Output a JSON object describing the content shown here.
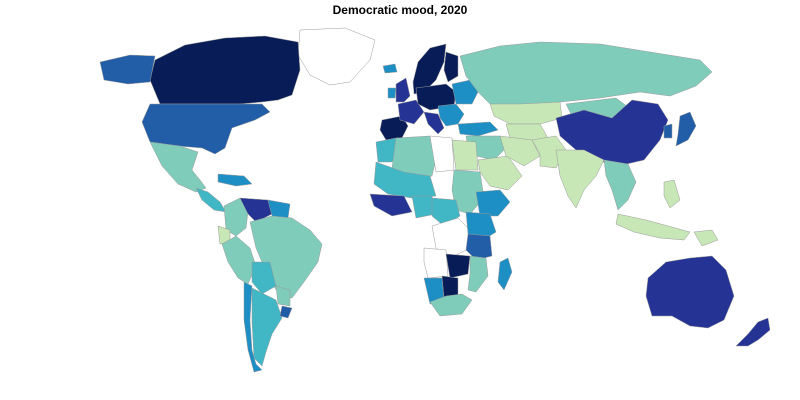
{
  "map": {
    "title": "Democratic mood, 2020",
    "palette": {
      "no_data": "#ffffff",
      "level_1": "#c8e7b6",
      "level_2": "#7fccbb",
      "level_3": "#41b6c4",
      "level_4": "#1e8fc4",
      "level_5": "#225ea8",
      "level_6": "#253494",
      "level_7": "#081d58"
    },
    "regions": [
      {
        "id": "greenland",
        "level": "no_data"
      },
      {
        "id": "canada",
        "level": "level_7"
      },
      {
        "id": "alaska",
        "level": "level_5"
      },
      {
        "id": "united-states",
        "level": "level_5"
      },
      {
        "id": "mexico",
        "level": "level_2"
      },
      {
        "id": "central-america",
        "level": "level_3"
      },
      {
        "id": "caribbean",
        "level": "level_4"
      },
      {
        "id": "colombia",
        "level": "level_2"
      },
      {
        "id": "venezuela",
        "level": "level_6"
      },
      {
        "id": "guianas",
        "level": "level_4"
      },
      {
        "id": "ecuador",
        "level": "level_1"
      },
      {
        "id": "peru",
        "level": "level_2"
      },
      {
        "id": "brazil",
        "level": "level_2"
      },
      {
        "id": "bolivia",
        "level": "level_3"
      },
      {
        "id": "paraguay",
        "level": "level_2"
      },
      {
        "id": "chile",
        "level": "level_4"
      },
      {
        "id": "argentina",
        "level": "level_3"
      },
      {
        "id": "uruguay",
        "level": "level_5"
      },
      {
        "id": "iceland",
        "level": "level_4"
      },
      {
        "id": "scandinavia",
        "level": "level_7"
      },
      {
        "id": "finland",
        "level": "level_7"
      },
      {
        "id": "uk",
        "level": "level_6"
      },
      {
        "id": "ireland",
        "level": "level_4"
      },
      {
        "id": "iberia",
        "level": "level_7"
      },
      {
        "id": "france",
        "level": "level_6"
      },
      {
        "id": "central-europe",
        "level": "level_7"
      },
      {
        "id": "italy",
        "level": "level_6"
      },
      {
        "id": "balkans",
        "level": "level_4"
      },
      {
        "id": "eastern-europe",
        "level": "level_4"
      },
      {
        "id": "turkey",
        "level": "level_4"
      },
      {
        "id": "russia",
        "level": "level_2"
      },
      {
        "id": "kazakhstan",
        "level": "level_1"
      },
      {
        "id": "central-asia",
        "level": "level_1"
      },
      {
        "id": "mongolia",
        "level": "level_2"
      },
      {
        "id": "china",
        "level": "level_6"
      },
      {
        "id": "korea",
        "level": "level_5"
      },
      {
        "id": "japan",
        "level": "level_5"
      },
      {
        "id": "middle-east",
        "level": "level_2"
      },
      {
        "id": "saudi-arabia",
        "level": "level_1"
      },
      {
        "id": "iran",
        "level": "level_1"
      },
      {
        "id": "afghanistan-pakistan",
        "level": "level_1"
      },
      {
        "id": "india",
        "level": "level_1"
      },
      {
        "id": "southeast-asia",
        "level": "level_2"
      },
      {
        "id": "philippines",
        "level": "level_1"
      },
      {
        "id": "indonesia",
        "level": "level_1"
      },
      {
        "id": "papua",
        "level": "level_1"
      },
      {
        "id": "australia",
        "level": "level_6"
      },
      {
        "id": "new-zealand",
        "level": "level_6"
      },
      {
        "id": "morocco",
        "level": "level_3"
      },
      {
        "id": "algeria",
        "level": "level_2"
      },
      {
        "id": "libya",
        "level": "no_data"
      },
      {
        "id": "egypt",
        "level": "level_1"
      },
      {
        "id": "sahel",
        "level": "level_3"
      },
      {
        "id": "west-africa-coast",
        "level": "level_6"
      },
      {
        "id": "nigeria",
        "level": "level_3"
      },
      {
        "id": "sudan",
        "level": "level_2"
      },
      {
        "id": "ethiopia",
        "level": "level_4"
      },
      {
        "id": "central-africa",
        "level": "level_3"
      },
      {
        "id": "drc",
        "level": "no_data"
      },
      {
        "id": "east-africa",
        "level": "level_4"
      },
      {
        "id": "tanzania",
        "level": "level_5"
      },
      {
        "id": "angola",
        "level": "no_data"
      },
      {
        "id": "zambia",
        "level": "level_7"
      },
      {
        "id": "mozambique",
        "level": "level_2"
      },
      {
        "id": "namibia",
        "level": "level_4"
      },
      {
        "id": "botswana",
        "level": "level_7"
      },
      {
        "id": "south-africa",
        "level": "level_2"
      },
      {
        "id": "madagascar",
        "level": "level_4"
      }
    ]
  }
}
